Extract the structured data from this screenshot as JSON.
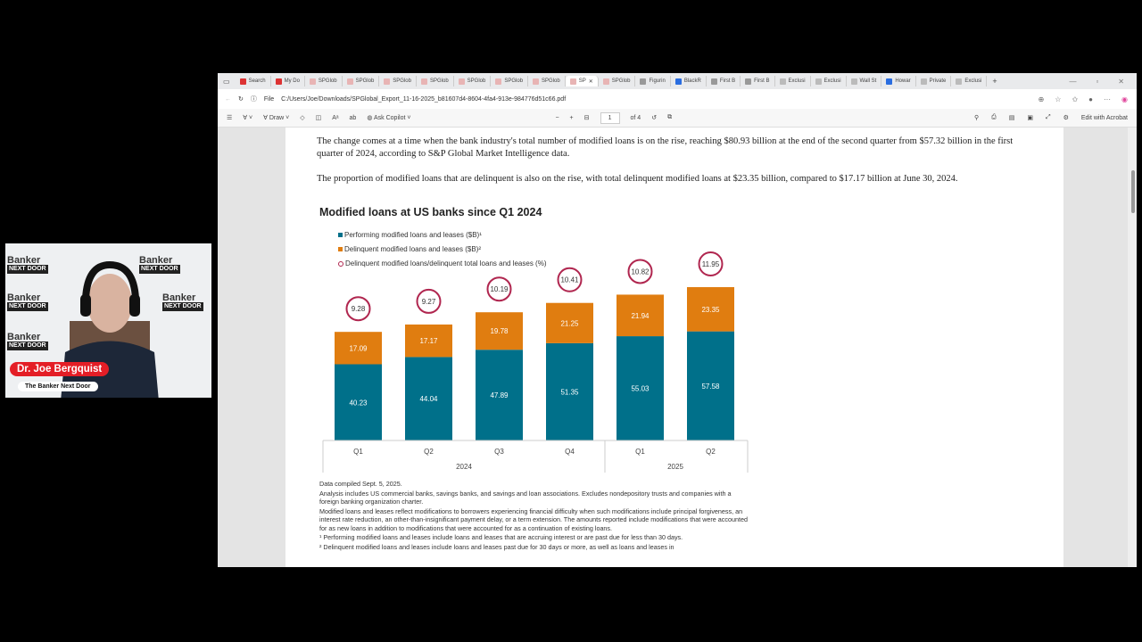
{
  "browser": {
    "tabs": [
      {
        "label": "Search",
        "icon": "red-favicon"
      },
      {
        "label": "My Do",
        "icon": "red-favicon"
      },
      {
        "label": "SPGlob",
        "icon": "pdf-icon"
      },
      {
        "label": "SPGlob",
        "icon": "pdf-icon"
      },
      {
        "label": "SPGlob",
        "icon": "pdf-icon"
      },
      {
        "label": "SPGlob",
        "icon": "pdf-icon"
      },
      {
        "label": "SPGlob",
        "icon": "pdf-icon"
      },
      {
        "label": "SPGlob",
        "icon": "pdf-icon"
      },
      {
        "label": "SPGlob",
        "icon": "pdf-icon"
      },
      {
        "label": "SP",
        "icon": "pdf-icon",
        "active": true
      },
      {
        "label": "SPGlob",
        "icon": "pdf-icon"
      },
      {
        "label": "Figurin",
        "icon": "doc-icon"
      },
      {
        "label": "BlackR",
        "icon": "blue-favicon"
      },
      {
        "label": "First B",
        "icon": "doc-icon"
      },
      {
        "label": "First B",
        "icon": "doc-icon"
      },
      {
        "label": "Exclusi",
        "icon": "wsj-icon"
      },
      {
        "label": "Exclusi",
        "icon": "wsj-icon"
      },
      {
        "label": "Wall St",
        "icon": "wsj-icon"
      },
      {
        "label": "Howar",
        "icon": "nbc-icon"
      },
      {
        "label": "Private",
        "icon": "wsj-icon"
      },
      {
        "label": "Exclusi",
        "icon": "wsj-icon"
      }
    ],
    "new_tab": "+",
    "address_prefix": "File",
    "url": "C:/Users/Joe/Downloads/SPGlobal_Export_11-16-2025_b81607d4-8604-4fa4-913e-984776d51c66.pdf"
  },
  "pdf_toolbar": {
    "draw_label": "Draw",
    "copilot_label": "Ask Copilot",
    "page_current": "1",
    "page_total": "of 4",
    "edit_label": "Edit with Acrobat"
  },
  "document": {
    "para1": "The change comes at a time when the bank industry's total number of modified loans is on the rise, reaching $80.93 billion at the end of the second quarter from $57.32 billion in the first quarter of 2024, according to S&P Global Market Intelligence data.",
    "para2": "The proportion of modified loans that are delinquent is also on the rise, with total delinquent modified loans at $23.35 billion, compared to $17.17 billion at June 30, 2024.",
    "notes": [
      "Data compiled Sept. 5, 2025.",
      "Analysis includes US commercial banks, savings banks, and savings and loan associations. Excludes nondepository trusts and companies with a foreign banking organization charter.",
      "Modified loans and leases reflect modifications to borrowers experiencing financial difficulty when such modifications include principal forgiveness, an interest rate reduction, an other-than-insignificant payment delay, or a term extension. The amounts reported include modifications that were accounted for as new loans in addition to modifications that were accounted for as a continuation of existing loans.",
      "¹ Performing modified loans and leases include loans and leases that are accruing interest or are past due for less than 30 days.",
      "² Delinquent modified loans and leases include loans and leases past due for 30 days or more, as well as loans and leases in"
    ]
  },
  "chart_data": {
    "type": "bar",
    "stacked": true,
    "title": "Modified loans at US banks since Q1 2024",
    "categories": [
      "Q1",
      "Q2",
      "Q3",
      "Q4",
      "Q1",
      "Q2"
    ],
    "groups": [
      {
        "label": "2024",
        "count": 4
      },
      {
        "label": "2025",
        "count": 2
      }
    ],
    "series": [
      {
        "name": "Performing modified loans and leases ($B)¹",
        "color": "#00708a",
        "values": [
          40.23,
          44.04,
          47.89,
          51.35,
          55.03,
          57.58
        ]
      },
      {
        "name": "Delinquent modified loans and leases ($B)²",
        "color": "#e07d10",
        "values": [
          17.09,
          17.17,
          19.78,
          21.25,
          21.94,
          23.35
        ]
      },
      {
        "name": "Delinquent modified loans/delinquent total loans and leases (%)",
        "color": "#b0264f",
        "marker": "circle",
        "values": [
          9.28,
          9.27,
          10.19,
          10.41,
          10.82,
          11.95
        ]
      }
    ],
    "grid": false,
    "legend": "top-left"
  },
  "webcam": {
    "name": "Dr. Joe Bergquist",
    "show": "The Banker Next Door",
    "backdrop_logo": "The Banker NEXT DOOR"
  }
}
